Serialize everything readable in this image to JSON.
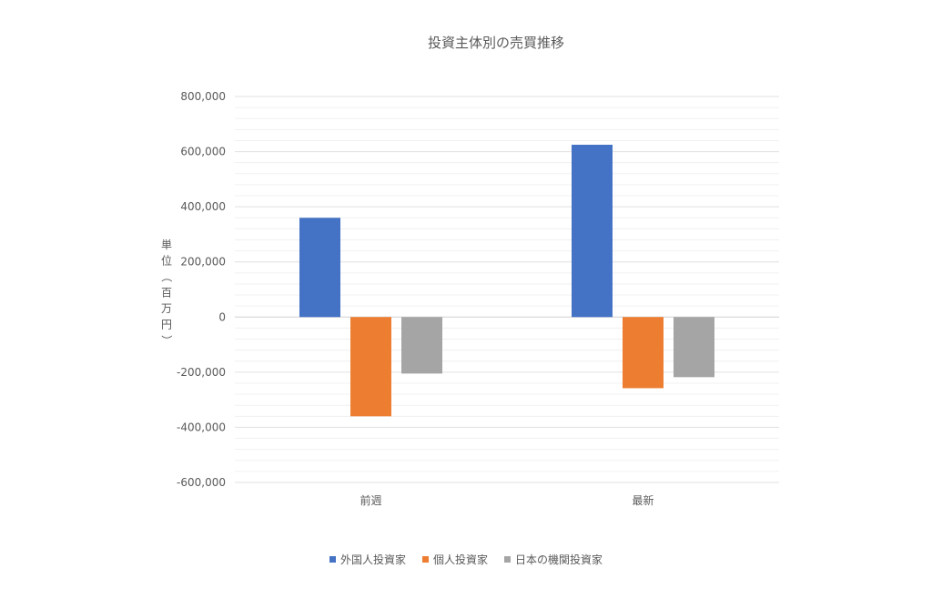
{
  "chart_data": {
    "type": "bar",
    "title": "投資主体別の売買推移",
    "ylabel": "単位（百万円）",
    "xlabel": "",
    "categories": [
      "前週",
      "最新"
    ],
    "series": [
      {
        "name": "外国人投資家",
        "color": "#4472C4",
        "values": [
          360000,
          625000
        ]
      },
      {
        "name": "個人投資家",
        "color": "#ED7D31",
        "values": [
          -360000,
          -258000
        ]
      },
      {
        "name": "日本の機関投資家",
        "color": "#A5A5A5",
        "values": [
          -205000,
          -218000
        ]
      }
    ],
    "ylim": [
      -600000,
      800000
    ],
    "yticks": [
      800000,
      600000,
      400000,
      200000,
      0,
      -200000,
      -400000,
      -600000
    ],
    "ytick_labels": [
      "800,000",
      "600,000",
      "400,000",
      "200,000",
      "0",
      "-200,000",
      "-400,000",
      "-600,000"
    ],
    "minor_grid": true,
    "legend": "bottom"
  }
}
